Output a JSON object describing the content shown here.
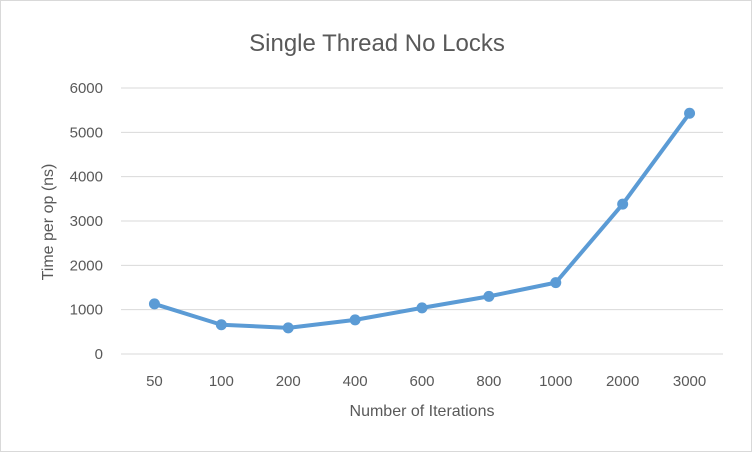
{
  "chart_data": {
    "type": "line",
    "title": "Single Thread No Locks",
    "xlabel": "Number of Iterations",
    "ylabel": "Time per op (ns)",
    "categories": [
      "50",
      "100",
      "200",
      "400",
      "600",
      "800",
      "1000",
      "2000",
      "3000"
    ],
    "series": [
      {
        "values": [
          1130,
          660,
          590,
          770,
          1040,
          1300,
          1610,
          3380,
          5430
        ]
      }
    ],
    "ylim": [
      0,
      6000
    ],
    "yticks": [
      0,
      1000,
      2000,
      3000,
      4000,
      5000,
      6000
    ],
    "grid": true,
    "legend": "none",
    "colors": {
      "line": "#5b9bd5",
      "grid": "#d9d9d9",
      "text": "#595959"
    }
  }
}
